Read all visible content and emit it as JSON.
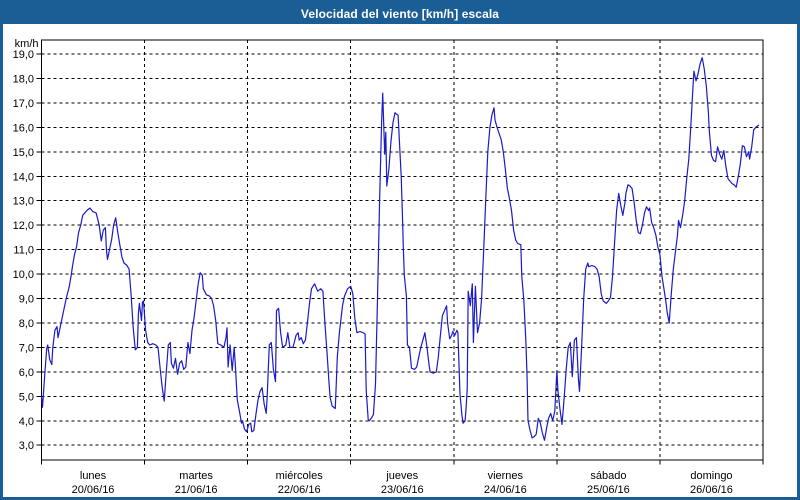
{
  "window": {
    "title": "Velocidad del viento [km/h] escala"
  },
  "colors": {
    "frame": "#1b5e96",
    "titlebar_bg": "#1b5e96",
    "titlebar_text": "#ffffff",
    "plot_bg": "#ffffff",
    "grid": "#000000",
    "axis": "#000000",
    "line": "#1a1ac8",
    "label": "#000000"
  },
  "chart_data": {
    "type": "line",
    "title": "Velocidad del viento [km/h] escala",
    "ylabel": "km/h",
    "ylim": [
      3,
      19
    ],
    "ytick_step": 1,
    "ytick_format": "comma-decimal",
    "grid": "dashed",
    "legend": "none",
    "x_days": [
      {
        "name": "lunes",
        "date": "20/06/16"
      },
      {
        "name": "martes",
        "date": "21/06/16"
      },
      {
        "name": "miércoles",
        "date": "22/06/16"
      },
      {
        "name": "jueves",
        "date": "23/06/16"
      },
      {
        "name": "viernes",
        "date": "24/06/16"
      },
      {
        "name": "sábado",
        "date": "25/06/16"
      },
      {
        "name": "domingo",
        "date": "26/06/16"
      }
    ],
    "x_unit": "days (0 = lunes 00:00)",
    "points": [
      [
        0.0,
        5.0
      ],
      [
        0.01,
        4.55
      ],
      [
        0.03,
        5.8
      ],
      [
        0.05,
        6.95
      ],
      [
        0.06,
        7.1
      ],
      [
        0.08,
        6.5
      ],
      [
        0.1,
        6.3
      ],
      [
        0.11,
        7.0
      ],
      [
        0.13,
        7.7
      ],
      [
        0.15,
        7.85
      ],
      [
        0.16,
        7.4
      ],
      [
        0.18,
        7.8
      ],
      [
        0.21,
        8.4
      ],
      [
        0.24,
        9.0
      ],
      [
        0.27,
        9.5
      ],
      [
        0.29,
        10.0
      ],
      [
        0.3,
        10.3
      ],
      [
        0.32,
        10.8
      ],
      [
        0.34,
        11.1
      ],
      [
        0.36,
        11.7
      ],
      [
        0.38,
        12.0
      ],
      [
        0.4,
        12.4
      ],
      [
        0.42,
        12.5
      ],
      [
        0.44,
        12.6
      ],
      [
        0.47,
        12.7
      ],
      [
        0.5,
        12.55
      ],
      [
        0.53,
        12.5
      ],
      [
        0.56,
        12.0
      ],
      [
        0.58,
        11.35
      ],
      [
        0.6,
        11.8
      ],
      [
        0.62,
        11.9
      ],
      [
        0.63,
        11.0
      ],
      [
        0.64,
        10.6
      ],
      [
        0.66,
        11.0
      ],
      [
        0.68,
        11.4
      ],
      [
        0.7,
        12.0
      ],
      [
        0.72,
        12.3
      ],
      [
        0.74,
        11.7
      ],
      [
        0.76,
        11.2
      ],
      [
        0.78,
        10.7
      ],
      [
        0.8,
        10.45
      ],
      [
        0.83,
        10.35
      ],
      [
        0.85,
        10.2
      ],
      [
        0.87,
        9.1
      ],
      [
        0.89,
        7.8
      ],
      [
        0.91,
        6.9
      ],
      [
        0.93,
        7.0
      ],
      [
        0.94,
        8.4
      ],
      [
        0.95,
        8.8
      ],
      [
        0.97,
        8.1
      ],
      [
        0.98,
        8.85
      ],
      [
        0.99,
        8.9
      ],
      [
        1.01,
        7.7
      ],
      [
        1.03,
        7.2
      ],
      [
        1.05,
        7.1
      ],
      [
        1.08,
        7.15
      ],
      [
        1.11,
        7.1
      ],
      [
        1.13,
        7.0
      ],
      [
        1.15,
        6.2
      ],
      [
        1.17,
        5.4
      ],
      [
        1.19,
        4.8
      ],
      [
        1.21,
        5.95
      ],
      [
        1.23,
        7.1
      ],
      [
        1.25,
        7.2
      ],
      [
        1.26,
        6.35
      ],
      [
        1.28,
        6.15
      ],
      [
        1.3,
        6.55
      ],
      [
        1.32,
        5.9
      ],
      [
        1.34,
        6.35
      ],
      [
        1.36,
        6.45
      ],
      [
        1.38,
        6.1
      ],
      [
        1.4,
        6.2
      ],
      [
        1.42,
        7.2
      ],
      [
        1.44,
        6.75
      ],
      [
        1.46,
        7.7
      ],
      [
        1.48,
        8.2
      ],
      [
        1.5,
        8.9
      ],
      [
        1.52,
        9.6
      ],
      [
        1.54,
        10.05
      ],
      [
        1.56,
        9.95
      ],
      [
        1.57,
        9.4
      ],
      [
        1.6,
        9.15
      ],
      [
        1.63,
        9.1
      ],
      [
        1.65,
        9.0
      ],
      [
        1.67,
        8.7
      ],
      [
        1.69,
        8.1
      ],
      [
        1.71,
        7.15
      ],
      [
        1.74,
        7.1
      ],
      [
        1.77,
        7.0
      ],
      [
        1.79,
        7.4
      ],
      [
        1.8,
        7.8
      ],
      [
        1.81,
        6.2
      ],
      [
        1.83,
        7.1
      ],
      [
        1.85,
        6.05
      ],
      [
        1.87,
        7.0
      ],
      [
        1.88,
        6.3
      ],
      [
        1.9,
        4.85
      ],
      [
        1.92,
        4.4
      ],
      [
        1.94,
        3.9
      ],
      [
        1.95,
        4.0
      ],
      [
        1.97,
        3.65
      ],
      [
        1.99,
        3.55
      ],
      [
        2.01,
        3.85
      ],
      [
        2.03,
        3.9
      ],
      [
        2.04,
        3.55
      ],
      [
        2.06,
        3.6
      ],
      [
        2.08,
        4.25
      ],
      [
        2.1,
        4.85
      ],
      [
        2.12,
        5.2
      ],
      [
        2.14,
        5.35
      ],
      [
        2.16,
        4.7
      ],
      [
        2.18,
        4.3
      ],
      [
        2.19,
        5.0
      ],
      [
        2.21,
        7.1
      ],
      [
        2.23,
        7.2
      ],
      [
        2.25,
        6.1
      ],
      [
        2.27,
        5.6
      ],
      [
        2.28,
        8.5
      ],
      [
        2.3,
        8.6
      ],
      [
        2.32,
        7.6
      ],
      [
        2.34,
        7.0
      ],
      [
        2.37,
        7.1
      ],
      [
        2.39,
        7.6
      ],
      [
        2.41,
        7.0
      ],
      [
        2.44,
        7.0
      ],
      [
        2.47,
        7.5
      ],
      [
        2.49,
        7.6
      ],
      [
        2.5,
        7.3
      ],
      [
        2.52,
        7.4
      ],
      [
        2.54,
        7.15
      ],
      [
        2.56,
        7.3
      ],
      [
        2.58,
        8.0
      ],
      [
        2.6,
        8.8
      ],
      [
        2.62,
        9.4
      ],
      [
        2.65,
        9.6
      ],
      [
        2.68,
        9.3
      ],
      [
        2.71,
        9.4
      ],
      [
        2.73,
        9.3
      ],
      [
        2.75,
        8.0
      ],
      [
        2.77,
        6.8
      ],
      [
        2.79,
        5.5
      ],
      [
        2.8,
        4.95
      ],
      [
        2.82,
        4.6
      ],
      [
        2.85,
        4.5
      ],
      [
        2.87,
        6.6
      ],
      [
        2.89,
        7.6
      ],
      [
        2.92,
        8.7
      ],
      [
        2.94,
        9.1
      ],
      [
        2.97,
        9.4
      ],
      [
        3.0,
        9.5
      ],
      [
        3.02,
        9.2
      ],
      [
        3.04,
        8.2
      ],
      [
        3.06,
        7.6
      ],
      [
        3.09,
        7.65
      ],
      [
        3.12,
        7.6
      ],
      [
        3.14,
        7.55
      ],
      [
        3.15,
        5.25
      ],
      [
        3.17,
        4.05
      ],
      [
        3.18,
        4.0
      ],
      [
        3.2,
        4.1
      ],
      [
        3.22,
        4.25
      ],
      [
        3.24,
        5.5
      ],
      [
        3.26,
        9.0
      ],
      [
        3.28,
        13.0
      ],
      [
        3.3,
        16.2
      ],
      [
        3.31,
        17.4
      ],
      [
        3.33,
        14.9
      ],
      [
        3.34,
        15.8
      ],
      [
        3.35,
        13.6
      ],
      [
        3.37,
        14.3
      ],
      [
        3.39,
        15.4
      ],
      [
        3.41,
        16.2
      ],
      [
        3.43,
        16.6
      ],
      [
        3.44,
        16.55
      ],
      [
        3.46,
        16.5
      ],
      [
        3.47,
        15.6
      ],
      [
        3.49,
        14.0
      ],
      [
        3.5,
        12.6
      ],
      [
        3.51,
        11.1
      ],
      [
        3.52,
        9.95
      ],
      [
        3.54,
        9.1
      ],
      [
        3.55,
        7.1
      ],
      [
        3.57,
        7.0
      ],
      [
        3.59,
        6.15
      ],
      [
        3.62,
        6.1
      ],
      [
        3.64,
        6.2
      ],
      [
        3.66,
        6.6
      ],
      [
        3.68,
        7.0
      ],
      [
        3.7,
        7.3
      ],
      [
        3.72,
        7.6
      ],
      [
        3.74,
        7.0
      ],
      [
        3.76,
        6.3
      ],
      [
        3.77,
        6.0
      ],
      [
        3.8,
        5.95
      ],
      [
        3.83,
        6.0
      ],
      [
        3.85,
        6.6
      ],
      [
        3.87,
        7.5
      ],
      [
        3.89,
        8.3
      ],
      [
        3.91,
        8.5
      ],
      [
        3.93,
        8.7
      ],
      [
        3.94,
        8.0
      ],
      [
        3.96,
        7.35
      ],
      [
        3.98,
        7.5
      ],
      [
        3.99,
        7.65
      ],
      [
        4.01,
        7.5
      ],
      [
        4.03,
        7.7
      ],
      [
        4.04,
        7.6
      ],
      [
        4.06,
        5.1
      ],
      [
        4.08,
        4.2
      ],
      [
        4.09,
        3.9
      ],
      [
        4.11,
        4.0
      ],
      [
        4.12,
        4.6
      ],
      [
        4.13,
        5.3
      ],
      [
        4.14,
        9.3
      ],
      [
        4.16,
        8.7
      ],
      [
        4.18,
        9.6
      ],
      [
        4.19,
        7.2
      ],
      [
        4.21,
        9.5
      ],
      [
        4.23,
        7.6
      ],
      [
        4.25,
        8.0
      ],
      [
        4.27,
        9.0
      ],
      [
        4.29,
        11.0
      ],
      [
        4.31,
        13.0
      ],
      [
        4.33,
        15.0
      ],
      [
        4.35,
        16.0
      ],
      [
        4.37,
        16.5
      ],
      [
        4.39,
        16.8
      ],
      [
        4.4,
        16.3
      ],
      [
        4.42,
        16.0
      ],
      [
        4.44,
        15.75
      ],
      [
        4.46,
        15.5
      ],
      [
        4.48,
        15.0
      ],
      [
        4.5,
        14.3
      ],
      [
        4.52,
        13.5
      ],
      [
        4.54,
        13.1
      ],
      [
        4.56,
        12.6
      ],
      [
        4.58,
        11.8
      ],
      [
        4.6,
        11.4
      ],
      [
        4.62,
        11.25
      ],
      [
        4.65,
        11.2
      ],
      [
        4.66,
        9.9
      ],
      [
        4.68,
        8.9
      ],
      [
        4.7,
        7.2
      ],
      [
        4.71,
        5.9
      ],
      [
        4.72,
        4.0
      ],
      [
        4.74,
        3.6
      ],
      [
        4.76,
        3.3
      ],
      [
        4.78,
        3.35
      ],
      [
        4.8,
        3.45
      ],
      [
        4.82,
        4.1
      ],
      [
        4.84,
        3.9
      ],
      [
        4.86,
        3.5
      ],
      [
        4.88,
        3.2
      ],
      [
        4.9,
        3.7
      ],
      [
        4.92,
        4.1
      ],
      [
        4.94,
        4.3
      ],
      [
        4.96,
        4.0
      ],
      [
        4.98,
        4.4
      ],
      [
        5.0,
        6.05
      ],
      [
        5.01,
        5.25
      ],
      [
        5.03,
        4.5
      ],
      [
        5.05,
        3.85
      ],
      [
        5.07,
        4.9
      ],
      [
        5.09,
        6.05
      ],
      [
        5.11,
        7.0
      ],
      [
        5.13,
        7.2
      ],
      [
        5.15,
        5.8
      ],
      [
        5.17,
        7.3
      ],
      [
        5.19,
        7.4
      ],
      [
        5.21,
        5.65
      ],
      [
        5.22,
        5.2
      ],
      [
        5.24,
        7.0
      ],
      [
        5.26,
        9.0
      ],
      [
        5.28,
        10.2
      ],
      [
        5.3,
        10.45
      ],
      [
        5.31,
        10.3
      ],
      [
        5.34,
        10.35
      ],
      [
        5.37,
        10.3
      ],
      [
        5.39,
        10.2
      ],
      [
        5.41,
        9.9
      ],
      [
        5.43,
        9.2
      ],
      [
        5.45,
        8.9
      ],
      [
        5.48,
        8.8
      ],
      [
        5.5,
        8.9
      ],
      [
        5.52,
        9.05
      ],
      [
        5.54,
        9.9
      ],
      [
        5.56,
        11.3
      ],
      [
        5.58,
        12.6
      ],
      [
        5.6,
        13.3
      ],
      [
        5.62,
        12.8
      ],
      [
        5.64,
        12.4
      ],
      [
        5.66,
        12.9
      ],
      [
        5.67,
        13.3
      ],
      [
        5.69,
        13.65
      ],
      [
        5.71,
        13.6
      ],
      [
        5.73,
        13.5
      ],
      [
        5.75,
        12.9
      ],
      [
        5.77,
        12.2
      ],
      [
        5.79,
        11.7
      ],
      [
        5.81,
        11.65
      ],
      [
        5.83,
        12.0
      ],
      [
        5.85,
        12.5
      ],
      [
        5.87,
        12.75
      ],
      [
        5.89,
        12.6
      ],
      [
        5.9,
        12.7
      ],
      [
        5.92,
        12.1
      ],
      [
        5.94,
        11.9
      ],
      [
        5.96,
        11.6
      ],
      [
        5.98,
        11.1
      ],
      [
        6.0,
        10.8
      ],
      [
        6.02,
        9.9
      ],
      [
        6.04,
        9.35
      ],
      [
        6.06,
        8.8
      ],
      [
        6.07,
        8.45
      ],
      [
        6.09,
        8.0
      ],
      [
        6.11,
        9.2
      ],
      [
        6.13,
        10.2
      ],
      [
        6.15,
        10.9
      ],
      [
        6.17,
        11.6
      ],
      [
        6.18,
        12.2
      ],
      [
        6.2,
        11.9
      ],
      [
        6.22,
        12.4
      ],
      [
        6.24,
        13.0
      ],
      [
        6.26,
        13.9
      ],
      [
        6.28,
        14.7
      ],
      [
        6.3,
        16.1
      ],
      [
        6.32,
        17.6
      ],
      [
        6.33,
        18.3
      ],
      [
        6.35,
        17.9
      ],
      [
        6.37,
        18.2
      ],
      [
        6.39,
        18.6
      ],
      [
        6.41,
        18.85
      ],
      [
        6.43,
        18.4
      ],
      [
        6.45,
        17.7
      ],
      [
        6.47,
        16.6
      ],
      [
        6.48,
        15.8
      ],
      [
        6.5,
        14.85
      ],
      [
        6.52,
        14.65
      ],
      [
        6.54,
        14.6
      ],
      [
        6.56,
        15.2
      ],
      [
        6.58,
        14.9
      ],
      [
        6.6,
        14.7
      ],
      [
        6.62,
        15.05
      ],
      [
        6.64,
        14.4
      ],
      [
        6.66,
        13.9
      ],
      [
        6.68,
        13.8
      ],
      [
        6.7,
        13.7
      ],
      [
        6.72,
        13.65
      ],
      [
        6.74,
        13.55
      ],
      [
        6.76,
        14.0
      ],
      [
        6.78,
        14.5
      ],
      [
        6.8,
        15.25
      ],
      [
        6.82,
        15.2
      ],
      [
        6.84,
        14.8
      ],
      [
        6.86,
        15.0
      ],
      [
        6.87,
        14.7
      ],
      [
        6.89,
        15.2
      ],
      [
        6.91,
        15.9
      ],
      [
        6.93,
        16.0
      ],
      [
        6.96,
        16.1
      ]
    ]
  }
}
